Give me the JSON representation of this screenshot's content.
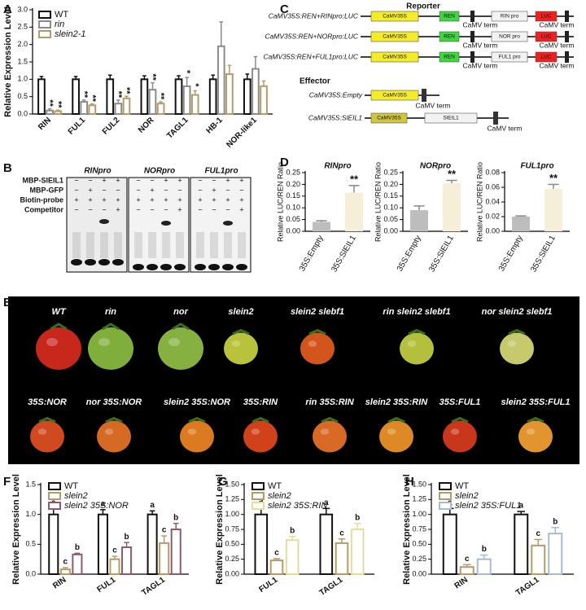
{
  "chart_data": [
    {
      "type": "bar",
      "y_label": "Relative Expression Level",
      "categories": [
        "RIN",
        "FUL1",
        "FUL2",
        "NOR",
        "TAGL1",
        "HB-1",
        "NOR-like1"
      ],
      "series": [
        {
          "name": "WT",
          "color": "#111111",
          "values": [
            1.0,
            1.0,
            1.0,
            1.0,
            1.0,
            1.0,
            1.0
          ],
          "errors": [
            0.08,
            0.08,
            0.12,
            0.1,
            0.1,
            0.12,
            0.15
          ]
        },
        {
          "name": "rin",
          "color": "#8c8c8c",
          "values": [
            0.1,
            0.35,
            0.3,
            0.7,
            0.8,
            1.95,
            1.3
          ],
          "errors": [
            0.05,
            0.05,
            0.1,
            0.2,
            0.25,
            0.7,
            0.35
          ],
          "significance": [
            "**",
            "**",
            "**",
            "**",
            "*",
            null,
            null
          ]
        },
        {
          "name": "slein2-1",
          "color": "#b59a6a",
          "values": [
            0.08,
            0.25,
            0.45,
            0.3,
            0.55,
            1.15,
            0.8
          ],
          "errors": [
            0.03,
            0.04,
            0.06,
            0.05,
            0.12,
            0.25,
            0.15
          ],
          "significance": [
            "**",
            "**",
            "**",
            "**",
            "*",
            null,
            null
          ]
        }
      ],
      "ylim": [
        0,
        3
      ],
      "yticks": [
        {
          "value": 0,
          "label": "0.0"
        },
        0.5,
        {
          "value": 1,
          "label": "1.0"
        },
        1.5,
        {
          "value": 2,
          "label": "2.0"
        },
        2.5,
        {
          "value": 3,
          "label": "3.0"
        }
      ]
    },
    {
      "type": "bar",
      "title": "RINpro",
      "y_label": "Relative LUC/REN Ratio",
      "categories": [
        "35S:Empty",
        "35S:SlEIL1"
      ],
      "values": [
        0.04,
        0.165
      ],
      "errors": [
        0.005,
        0.03
      ],
      "significance": [
        null,
        "**"
      ],
      "colors": [
        "#bdbdbd",
        "#f5efd9"
      ],
      "ylim": [
        0,
        0.25
      ],
      "yticks": [
        {
          "value": 0,
          "label": "0.00"
        },
        0.05,
        {
          "value": 0.1,
          "label": "0.10"
        },
        0.15,
        {
          "value": 0.2,
          "label": "0.20"
        },
        0.25
      ]
    },
    {
      "type": "bar",
      "title": "NORpro",
      "y_label": "Relative LUC/REN Ratio",
      "categories": [
        "35S:Empty",
        "35S:SlEIL1"
      ],
      "values": [
        0.09,
        0.205
      ],
      "errors": [
        0.018,
        0.012
      ],
      "significance": [
        null,
        "**"
      ],
      "colors": [
        "#bdbdbd",
        "#f5efd9"
      ],
      "ylim": [
        0,
        0.25
      ],
      "yticks": [
        {
          "value": 0,
          "label": "0.00"
        },
        0.05,
        {
          "value": 0.1,
          "label": "0.10"
        },
        0.15,
        {
          "value": 0.2,
          "label": "0.20"
        },
        0.25
      ]
    },
    {
      "type": "bar",
      "title": "FUL1pro",
      "y_label": "Relative LUC/REN Ratio",
      "categories": [
        "35S:Empty",
        "35S:SlEIL1"
      ],
      "values": [
        0.02,
        0.058
      ],
      "errors": [
        0.001,
        0.006
      ],
      "significance": [
        null,
        "**"
      ],
      "colors": [
        "#bdbdbd",
        "#f5efd9"
      ],
      "ylim": [
        0,
        0.08
      ],
      "yticks": [
        {
          "value": 0,
          "label": "0.00"
        },
        0.02,
        0.04,
        0.06,
        0.08
      ]
    },
    {
      "type": "bar",
      "y_label": "Relative Expression Level",
      "categories": [
        "RIN",
        "FUL1",
        "TAGL1"
      ],
      "series": [
        {
          "name": "WT",
          "color": "#111111",
          "values": [
            1.0,
            1.0,
            1.0
          ],
          "errors": [
            0.1,
            0.08,
            0.06
          ],
          "letters": [
            "a",
            "a",
            "a"
          ]
        },
        {
          "name": "slein2",
          "color": "#b59a6a",
          "values": [
            0.08,
            0.25,
            0.52
          ],
          "errors": [
            0.03,
            0.05,
            0.12
          ],
          "letters": [
            "c",
            "c",
            "c"
          ]
        },
        {
          "name": "slein2 35S:NOR",
          "color": "#8e5a6e",
          "values": [
            0.33,
            0.45,
            0.75
          ],
          "errors": [
            0.02,
            0.08,
            0.1
          ],
          "letters": [
            "b",
            "b",
            "b"
          ]
        }
      ],
      "ylim": [
        0,
        1.5
      ],
      "yticks": [
        {
          "value": 0,
          "label": "0.0"
        },
        0.5,
        {
          "value": 1,
          "label": "1.0"
        },
        1.5
      ]
    },
    {
      "type": "bar",
      "y_label": "Relative Expression Level",
      "categories": [
        "FUL1",
        "TAGL1"
      ],
      "series": [
        {
          "name": "WT",
          "color": "#111111",
          "values": [
            1.0,
            1.0
          ],
          "errors": [
            0.13,
            0.1
          ],
          "letters": [
            "a",
            "a"
          ]
        },
        {
          "name": "slein2",
          "color": "#b59a6a",
          "values": [
            0.23,
            0.52
          ],
          "errors": [
            0.03,
            0.07
          ],
          "letters": [
            "c",
            "c"
          ]
        },
        {
          "name": "slein2 35S:RIN",
          "color": "#e6dc9c",
          "values": [
            0.57,
            0.75
          ],
          "errors": [
            0.06,
            0.1
          ],
          "letters": [
            "b",
            "b"
          ]
        }
      ],
      "ylim": [
        0,
        1.5
      ],
      "yticks": [
        {
          "value": 0,
          "label": "0.00"
        },
        0.25,
        {
          "value": 0.5,
          "label": "0.50"
        },
        0.75,
        {
          "value": 1,
          "label": "1.00"
        },
        1.25,
        {
          "value": 1.5,
          "label": "1.50"
        }
      ]
    },
    {
      "type": "bar",
      "y_label": "Relative Expression Level",
      "categories": [
        "RIN",
        "TAGL1"
      ],
      "series": [
        {
          "name": "WT",
          "color": "#111111",
          "values": [
            1.0,
            1.0
          ],
          "errors": [
            0.1,
            0.05
          ],
          "letters": [
            "a",
            "a"
          ]
        },
        {
          "name": "slein2",
          "color": "#b59a6a",
          "values": [
            0.12,
            0.48
          ],
          "errors": [
            0.04,
            0.1
          ],
          "letters": [
            "c",
            "c"
          ]
        },
        {
          "name": "slein2 35S:FUL1",
          "color": "#a8b8d8",
          "values": [
            0.25,
            0.68
          ],
          "errors": [
            0.07,
            0.1
          ],
          "letters": [
            "b",
            "b"
          ]
        }
      ],
      "ylim": [
        0,
        1.5
      ],
      "yticks": [
        {
          "value": 0,
          "label": "0.00"
        },
        0.25,
        {
          "value": 0.5,
          "label": "0.50"
        },
        0.75,
        {
          "value": 1,
          "label": "1.00"
        },
        1.25,
        {
          "value": 1.5,
          "label": "1.50"
        }
      ]
    }
  ],
  "panel_labels": [
    "A",
    "B",
    "C",
    "D",
    "E",
    "F",
    "G",
    "H"
  ],
  "emsa": {
    "probes": [
      "RINpro",
      "NORpro",
      "FUL1pro"
    ],
    "rows": [
      {
        "name": "MBP-SlEIL1",
        "signs": [
          "−",
          "−",
          "+",
          "+"
        ]
      },
      {
        "name": "MBP-GFP",
        "signs": [
          "−",
          "+",
          "−",
          "−"
        ]
      },
      {
        "name": "Biotin-probe",
        "signs": [
          "+",
          "+",
          "+",
          "+"
        ]
      },
      {
        "name": "Competitor",
        "signs": [
          "−",
          "−",
          "−",
          "+"
        ]
      }
    ]
  },
  "constructs": {
    "reporter_title": "Reporter",
    "reporters": [
      {
        "name": "CaMV35S:REN+RINpro:LUC",
        "promoter": "CaMV35S",
        "ren": "REN",
        "pro": "RIN pro",
        "luc": "LUC",
        "terms": [
          "CaMV term",
          "CaMV term"
        ]
      },
      {
        "name": "CaMV35S:REN+NORpro:LUC",
        "promoter": "CaMV35S",
        "ren": "REN",
        "pro": "NOR pro",
        "luc": "LUC",
        "terms": [
          "CaMV term",
          "CaMV term"
        ]
      },
      {
        "name": "CaMV35S:REN+FUL1pro:LUC",
        "promoter": "CaMV35S",
        "ren": "REN",
        "pro": "FUL1 pro",
        "luc": "LUC",
        "terms": [
          "CaMV term",
          "CaMV term"
        ]
      }
    ],
    "effector_title": "Effector",
    "effectors": [
      {
        "name": "CaMV35S:Empty",
        "promoter": "CaMV35S",
        "term": "CaMV term"
      },
      {
        "name": "CaMV35S:SlEIL1",
        "promoter": "CaMV35S",
        "gene": "SlEIL1",
        "term": "CaMV term"
      }
    ]
  },
  "fruits": [
    [
      {
        "label": "WT",
        "color": "#c8271c"
      },
      {
        "label": "rin",
        "color": "#7fae3c"
      },
      {
        "label": "nor",
        "color": "#86b140"
      },
      {
        "label": "slein2",
        "color": "#b8c23a"
      },
      {
        "label": "slein2 slebf1",
        "color": "#d2561c"
      },
      {
        "label": "rin slein2 slebf1",
        "color": "#b4c03c"
      },
      {
        "label": "nor slein2 slebf1",
        "color": "#c6ca6c"
      }
    ],
    [
      {
        "label": "35S:NOR",
        "color": "#cf4a1e"
      },
      {
        "label": "nor 35S:NOR",
        "color": "#d56a24"
      },
      {
        "label": "slein2 35S:NOR",
        "color": "#dc7a22"
      },
      {
        "label": "35S:RIN",
        "color": "#d2421a"
      },
      {
        "label": "rin 35S:RIN",
        "color": "#d86a26"
      },
      {
        "label": "slein2 35S:RIN",
        "color": "#dd8a26"
      },
      {
        "label": "35S:FUL1",
        "color": "#c8361c"
      },
      {
        "label": "slein2 35S:FUL1",
        "color": "#e2942e"
      }
    ]
  ]
}
